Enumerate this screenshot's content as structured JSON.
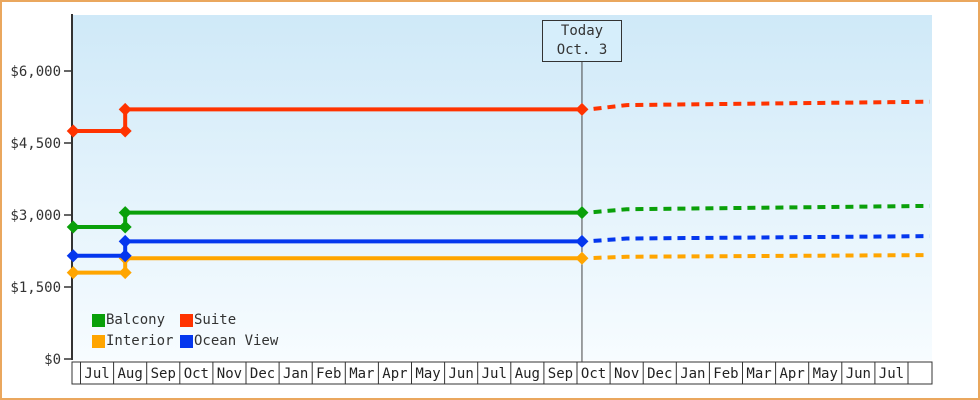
{
  "chart_data": {
    "type": "line",
    "title": "",
    "today": {
      "line1": "Today",
      "line2": "Oct. 3",
      "month_position": 15.15
    },
    "y_axis": {
      "tick_labels": [
        "$0",
        "$1,500",
        "$3,000",
        "$4,500",
        "$6,000"
      ],
      "tick_values": [
        0,
        1500,
        3000,
        4500,
        6000
      ],
      "ylim": [
        0,
        7160
      ],
      "grid": false
    },
    "x_axis": {
      "month_labels": [
        "Jul",
        "Aug",
        "Sep",
        "Oct",
        "Nov",
        "Dec",
        "Jan",
        "Feb",
        "Mar",
        "Apr",
        "May",
        "Jun",
        "Jul",
        "Aug",
        "Sep",
        "Oct",
        "Nov",
        "Dec",
        "Jan",
        "Feb",
        "Mar",
        "Apr",
        "May",
        "Jun",
        "Jul"
      ]
    },
    "series": [
      {
        "name": "Balcony",
        "color": "#0aa00a",
        "solid_points": [
          [
            -0.22,
            2750
          ],
          [
            1.35,
            2750
          ],
          [
            1.35,
            3050
          ],
          [
            15.15,
            3050
          ]
        ],
        "dashed_points": [
          [
            15.5,
            3060
          ],
          [
            16.5,
            3120
          ],
          [
            25.65,
            3190
          ]
        ]
      },
      {
        "name": "Suite",
        "color": "#ff3300",
        "solid_points": [
          [
            -0.22,
            4750
          ],
          [
            1.35,
            4750
          ],
          [
            1.35,
            5200
          ],
          [
            15.15,
            5200
          ]
        ],
        "dashed_points": [
          [
            15.5,
            5210
          ],
          [
            16.5,
            5290
          ],
          [
            25.65,
            5360
          ]
        ]
      },
      {
        "name": "Interior",
        "color": "#ffa500",
        "solid_points": [
          [
            -0.22,
            1800
          ],
          [
            1.35,
            1800
          ],
          [
            1.35,
            2100
          ],
          [
            15.15,
            2100
          ]
        ],
        "dashed_points": [
          [
            15.5,
            2105
          ],
          [
            16.5,
            2130
          ],
          [
            25.65,
            2165
          ]
        ]
      },
      {
        "name": "Ocean View",
        "color": "#0437ee",
        "solid_points": [
          [
            -0.22,
            2150
          ],
          [
            1.35,
            2150
          ],
          [
            1.35,
            2450
          ],
          [
            15.15,
            2450
          ]
        ],
        "dashed_points": [
          [
            15.5,
            2460
          ],
          [
            16.5,
            2510
          ],
          [
            25.65,
            2560
          ]
        ]
      }
    ],
    "legend_position": "bottom-left",
    "colors": {
      "frame_border": "#eaa75e",
      "axis": "#333333",
      "today_line": "#444444",
      "plot_bg_top": "#cfe9f8",
      "plot_bg_bottom": "#f7fcff",
      "today_box_bg": "#d6eefb"
    }
  }
}
